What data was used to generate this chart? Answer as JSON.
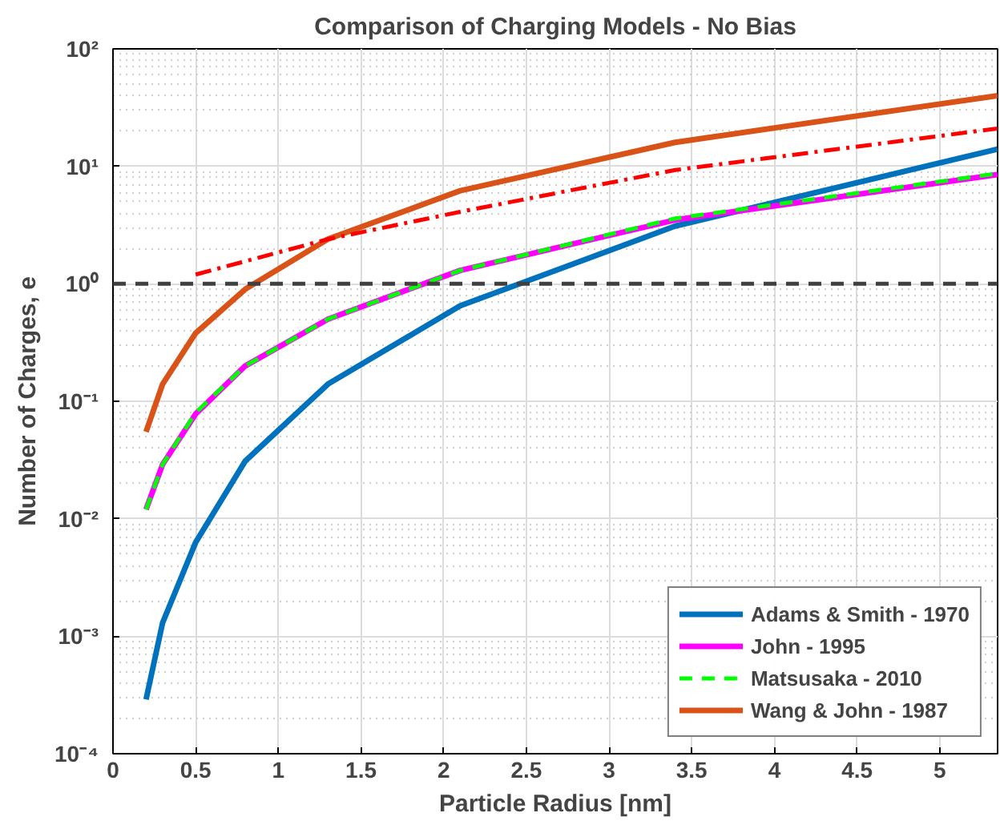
{
  "chart_data": {
    "type": "line",
    "title": "Comparison of Charging Models - No Bias",
    "xlabel": "Particle Radius [nm]",
    "ylabel": "Number of Charges, e",
    "x": [
      0.2,
      0.3,
      0.5,
      0.8,
      1.3,
      2.1,
      3.4,
      5.35
    ],
    "series": [
      {
        "name": "Adams & Smith - 1970",
        "color": "#0072bd",
        "line_style": "solid",
        "values": [
          0.00029,
          0.0013,
          0.0063,
          0.031,
          0.14,
          0.65,
          3.1,
          14
        ]
      },
      {
        "name": "John - 1995",
        "color": "#ff00ff",
        "line_style": "solid",
        "values": [
          0.012,
          0.029,
          0.078,
          0.2,
          0.5,
          1.3,
          3.5,
          8.5
        ]
      },
      {
        "name": "Matsusaka - 2010",
        "color": "#00ff00",
        "line_style": "dashed",
        "values": [
          0.012,
          0.029,
          0.08,
          0.2,
          0.5,
          1.3,
          3.6,
          8.7
        ]
      },
      {
        "name": "Wang & John - 1987",
        "color": "#d95319",
        "line_style": "solid",
        "values": [
          0.055,
          0.14,
          0.38,
          0.9,
          2.4,
          6.2,
          16,
          40
        ]
      },
      {
        "color": "#ff0000",
        "line_style": "dashdot",
        "x": [
          0.5,
          1.3,
          2.1,
          3.4,
          5.35
        ],
        "values": [
          1.2,
          2.4,
          4.1,
          9.3,
          21
        ]
      }
    ],
    "ref_lines": [
      {
        "axis": "y",
        "value": 1,
        "color": "#404040",
        "line_style": "dashed"
      }
    ],
    "log": "y",
    "xlim": [
      0,
      5.35
    ],
    "ylim": [
      0.0001,
      100
    ],
    "xticks": [
      0,
      0.5,
      1,
      1.5,
      2,
      2.5,
      3,
      3.5,
      4,
      4.5,
      5
    ],
    "yticks": [
      {
        "value": 0.0001,
        "label": "10⁻⁴"
      },
      {
        "value": 0.001,
        "label": "10⁻³"
      },
      {
        "value": 0.01,
        "label": "10⁻²"
      },
      {
        "value": 0.1,
        "label": "10⁻¹"
      },
      {
        "value": 1,
        "label": "10⁰"
      },
      {
        "value": 10,
        "label": "10¹"
      },
      {
        "value": 100,
        "label": "10²"
      }
    ],
    "grid": true,
    "legend": "bottom right"
  }
}
